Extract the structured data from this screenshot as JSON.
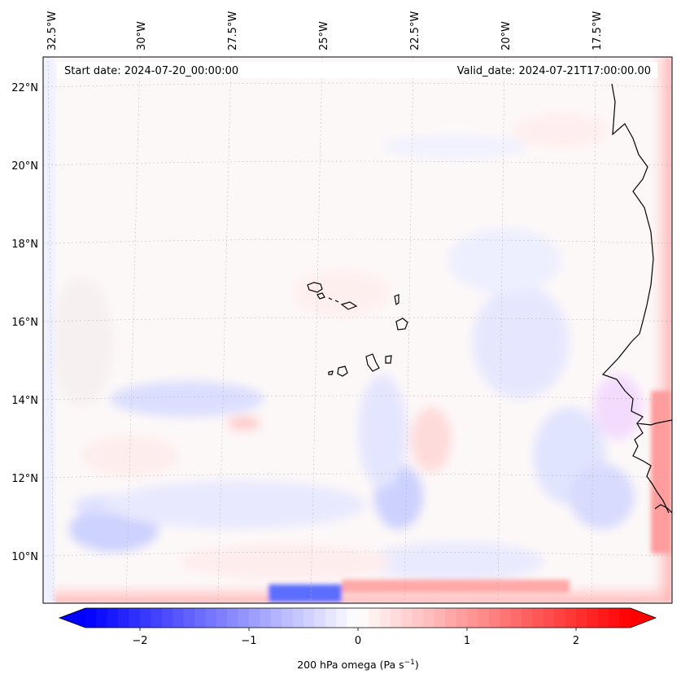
{
  "header": {
    "start_date": "Start date: 2024-07-20_00:00:00",
    "valid_date": "Valid_date: 2024-07-21T17:00:00.00"
  },
  "longitude_labels": [
    "32.5°W",
    "30°W",
    "27.5°W",
    "25°W",
    "22.5°W",
    "20°W",
    "17.5°W"
  ],
  "latitude_labels": [
    "22°N",
    "20°N",
    "18°N",
    "16°N",
    "14°N",
    "12°N",
    "10°N"
  ],
  "colorbar": {
    "ticks": [
      "−2",
      "−1",
      "0",
      "1",
      "2"
    ],
    "label_main": "200 hPa omega (Pa s",
    "label_sup": "−1",
    "label_end": ")",
    "colors": {
      "neg": "#0000ff",
      "zero": "#ffffff",
      "pos": "#ff0000"
    }
  },
  "map": {
    "coastline_color": "#000000",
    "grid_color": "#b0b0b0"
  }
}
